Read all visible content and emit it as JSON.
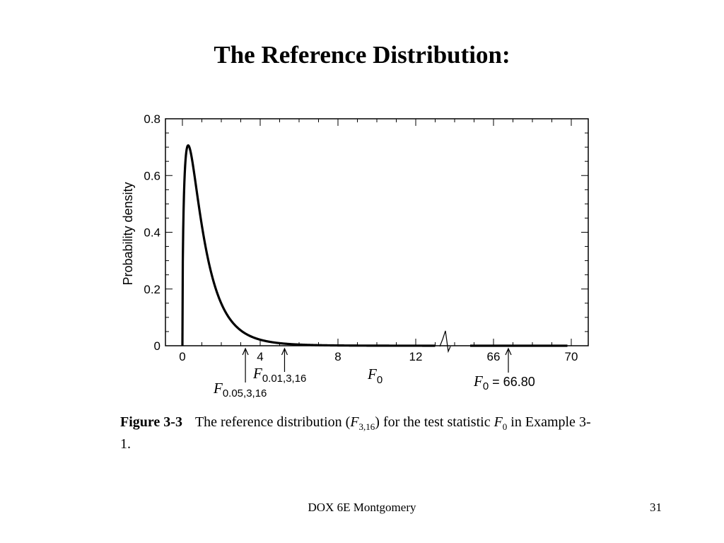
{
  "slide": {
    "title": "The Reference Distribution:",
    "footer": "DOX 6E Montgomery",
    "page_number": "31"
  },
  "figure": {
    "caption_label": "Figure 3-3",
    "caption_pre": "The reference distribution (",
    "caption_F": "F",
    "caption_sub": "3,16",
    "caption_mid": ") for the test statistic ",
    "caption_F0": "F",
    "caption_F0_sub": "0",
    "caption_post": " in Example 3-1."
  },
  "chart_data": {
    "type": "line",
    "ylabel": "Probability density",
    "xlabel": {
      "italic": "F",
      "sub": "0"
    },
    "ylim": [
      0,
      0.8
    ],
    "y_ticks": [
      "0",
      "0.2",
      "0.4",
      "0.6",
      "0.8"
    ],
    "x_ticks_left": [
      0,
      4,
      8,
      12
    ],
    "x_ticks_right": [
      66,
      70
    ],
    "xlim_left": [
      0,
      14
    ],
    "xlim_right": [
      64,
      70
    ],
    "axis_break": true,
    "series": [
      {
        "distribution": "F",
        "df1": 3,
        "df2": 16
      }
    ],
    "annotations": [
      {
        "x": 3.24,
        "italic": "F",
        "sub": "0.05,3,16"
      },
      {
        "x": 5.29,
        "italic": "F",
        "sub": "0.01,3,16"
      },
      {
        "x": 66.8,
        "italic": "F",
        "sub": "0",
        "text": " = 66.80"
      }
    ]
  }
}
